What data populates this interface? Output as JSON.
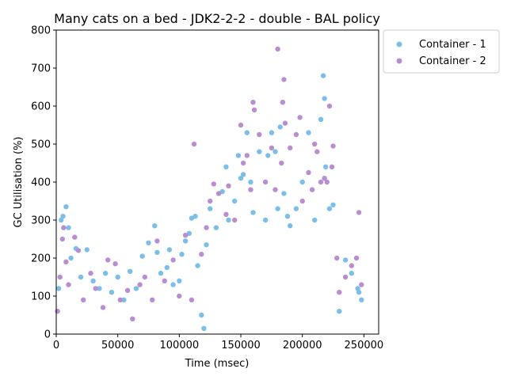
{
  "chart_data": {
    "type": "scatter",
    "title": "Many cats on a bed - JDK2-2-2 - double -  BAL policy",
    "xlabel": "Time (msec)",
    "ylabel": "GC Utilisation (%)",
    "xlim": [
      0,
      262000
    ],
    "ylim": [
      0,
      800
    ],
    "xticks": [
      0,
      50000,
      100000,
      150000,
      200000,
      250000
    ],
    "xtick_labels": [
      "0",
      "50000",
      "100000",
      "150000",
      "200000",
      "250000"
    ],
    "yticks": [
      0,
      100,
      200,
      300,
      400,
      500,
      600,
      700,
      800
    ],
    "ytick_labels": [
      "0",
      "100",
      "200",
      "300",
      "400",
      "500",
      "600",
      "700",
      "800"
    ],
    "legend_position": "outside-top-right",
    "series": [
      {
        "name": "Container - 1",
        "color": "#7bbfe8",
        "points": [
          [
            2000,
            120
          ],
          [
            4000,
            300
          ],
          [
            5500,
            310
          ],
          [
            8000,
            335
          ],
          [
            10000,
            280
          ],
          [
            12000,
            200
          ],
          [
            16000,
            225
          ],
          [
            20000,
            150
          ],
          [
            25000,
            222
          ],
          [
            30000,
            140
          ],
          [
            35000,
            120
          ],
          [
            40000,
            160
          ],
          [
            45000,
            110
          ],
          [
            50000,
            150
          ],
          [
            55000,
            90
          ],
          [
            60000,
            165
          ],
          [
            65000,
            120
          ],
          [
            70000,
            205
          ],
          [
            75000,
            240
          ],
          [
            80000,
            285
          ],
          [
            82000,
            215
          ],
          [
            85000,
            160
          ],
          [
            90000,
            175
          ],
          [
            92000,
            222
          ],
          [
            95000,
            130
          ],
          [
            100000,
            140
          ],
          [
            102000,
            210
          ],
          [
            105000,
            245
          ],
          [
            108000,
            265
          ],
          [
            110000,
            305
          ],
          [
            113000,
            310
          ],
          [
            115000,
            180
          ],
          [
            118000,
            50
          ],
          [
            120000,
            15
          ],
          [
            122000,
            235
          ],
          [
            125000,
            330
          ],
          [
            130000,
            280
          ],
          [
            135000,
            375
          ],
          [
            138000,
            440
          ],
          [
            140000,
            300
          ],
          [
            145000,
            350
          ],
          [
            148000,
            470
          ],
          [
            150000,
            410
          ],
          [
            152000,
            420
          ],
          [
            155000,
            530
          ],
          [
            158000,
            400
          ],
          [
            160000,
            320
          ],
          [
            165000,
            480
          ],
          [
            170000,
            300
          ],
          [
            172000,
            470
          ],
          [
            175000,
            530
          ],
          [
            178000,
            480
          ],
          [
            180000,
            330
          ],
          [
            182000,
            545
          ],
          [
            185000,
            370
          ],
          [
            188000,
            310
          ],
          [
            190000,
            285
          ],
          [
            195000,
            330
          ],
          [
            200000,
            400
          ],
          [
            205000,
            530
          ],
          [
            210000,
            300
          ],
          [
            215000,
            565
          ],
          [
            217000,
            680
          ],
          [
            218000,
            620
          ],
          [
            219000,
            440
          ],
          [
            222000,
            330
          ],
          [
            225000,
            340
          ],
          [
            230000,
            60
          ],
          [
            235000,
            195
          ],
          [
            240000,
            160
          ],
          [
            245000,
            120
          ],
          [
            246000,
            110
          ],
          [
            248000,
            90
          ]
        ]
      },
      {
        "name": "Container - 2",
        "color": "#b98ed1",
        "points": [
          [
            1000,
            60
          ],
          [
            3000,
            150
          ],
          [
            5000,
            250
          ],
          [
            6000,
            280
          ],
          [
            8000,
            190
          ],
          [
            10000,
            130
          ],
          [
            15000,
            255
          ],
          [
            18000,
            220
          ],
          [
            22000,
            90
          ],
          [
            28000,
            160
          ],
          [
            32000,
            120
          ],
          [
            38000,
            70
          ],
          [
            42000,
            195
          ],
          [
            48000,
            185
          ],
          [
            52000,
            90
          ],
          [
            58000,
            115
          ],
          [
            62000,
            40
          ],
          [
            68000,
            130
          ],
          [
            72000,
            150
          ],
          [
            78000,
            90
          ],
          [
            82000,
            245
          ],
          [
            88000,
            140
          ],
          [
            95000,
            195
          ],
          [
            100000,
            100
          ],
          [
            105000,
            260
          ],
          [
            110000,
            90
          ],
          [
            112000,
            500
          ],
          [
            118000,
            210
          ],
          [
            122000,
            280
          ],
          [
            125000,
            350
          ],
          [
            128000,
            395
          ],
          [
            132000,
            370
          ],
          [
            138000,
            315
          ],
          [
            140000,
            390
          ],
          [
            145000,
            300
          ],
          [
            150000,
            550
          ],
          [
            152000,
            450
          ],
          [
            155000,
            470
          ],
          [
            158000,
            380
          ],
          [
            160000,
            610
          ],
          [
            161000,
            590
          ],
          [
            165000,
            525
          ],
          [
            170000,
            400
          ],
          [
            175000,
            490
          ],
          [
            178000,
            380
          ],
          [
            180000,
            750
          ],
          [
            183000,
            450
          ],
          [
            184000,
            610
          ],
          [
            185000,
            670
          ],
          [
            186000,
            555
          ],
          [
            190000,
            490
          ],
          [
            195000,
            525
          ],
          [
            198000,
            570
          ],
          [
            200000,
            350
          ],
          [
            205000,
            425
          ],
          [
            208000,
            380
          ],
          [
            210000,
            500
          ],
          [
            212000,
            480
          ],
          [
            215000,
            400
          ],
          [
            218000,
            410
          ],
          [
            220000,
            400
          ],
          [
            222000,
            600
          ],
          [
            224000,
            440
          ],
          [
            225000,
            495
          ],
          [
            228000,
            200
          ],
          [
            230000,
            110
          ],
          [
            235000,
            150
          ],
          [
            240000,
            180
          ],
          [
            244000,
            200
          ],
          [
            246000,
            320
          ],
          [
            248000,
            130
          ]
        ]
      }
    ]
  }
}
